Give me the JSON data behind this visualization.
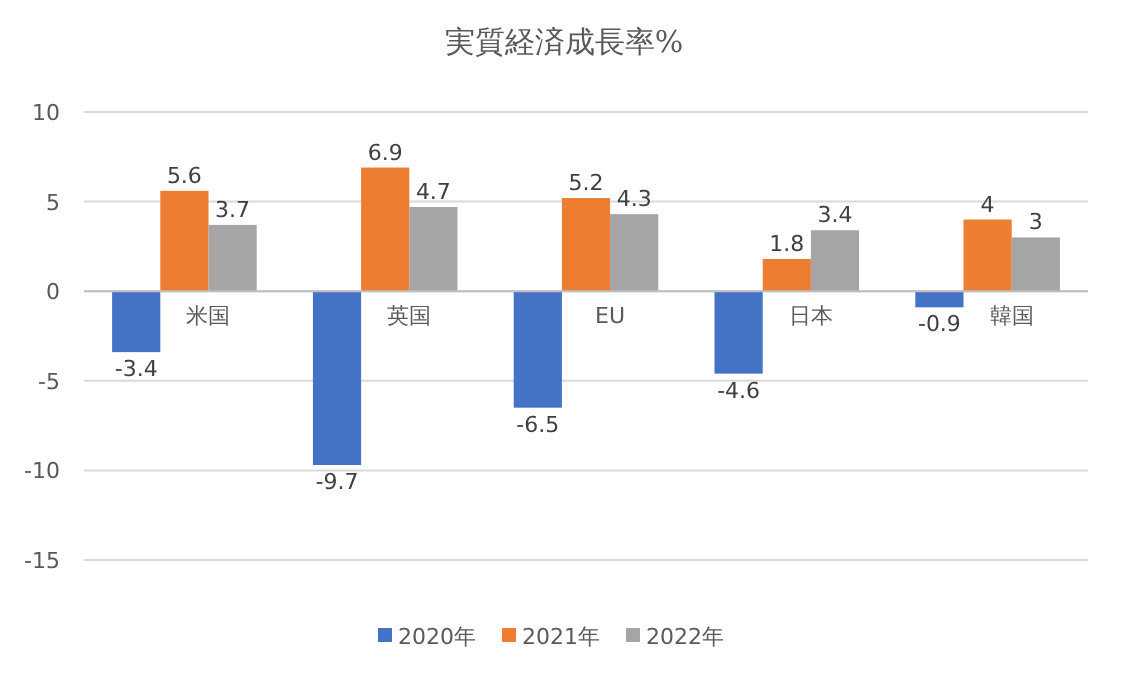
{
  "chart_data": {
    "type": "bar",
    "title": "実質経済成長率%",
    "categories": [
      "米国",
      "英国",
      "EU",
      "日本",
      "韓国"
    ],
    "series": [
      {
        "name": "2020年",
        "color": "#4472c4",
        "values": [
          -3.4,
          -9.7,
          -6.5,
          -4.6,
          -0.9
        ]
      },
      {
        "name": "2021年",
        "color": "#ed7d31",
        "values": [
          5.6,
          6.9,
          5.2,
          1.8,
          4
        ]
      },
      {
        "name": "2022年",
        "color": "#a5a5a5",
        "values": [
          3.7,
          4.7,
          4.3,
          3.4,
          3
        ]
      }
    ],
    "ylim": [
      -15,
      10
    ],
    "yticks": [
      -15,
      -10,
      -5,
      0,
      5,
      10
    ],
    "grid": "y",
    "legend": "bottom",
    "data_labels": true
  }
}
